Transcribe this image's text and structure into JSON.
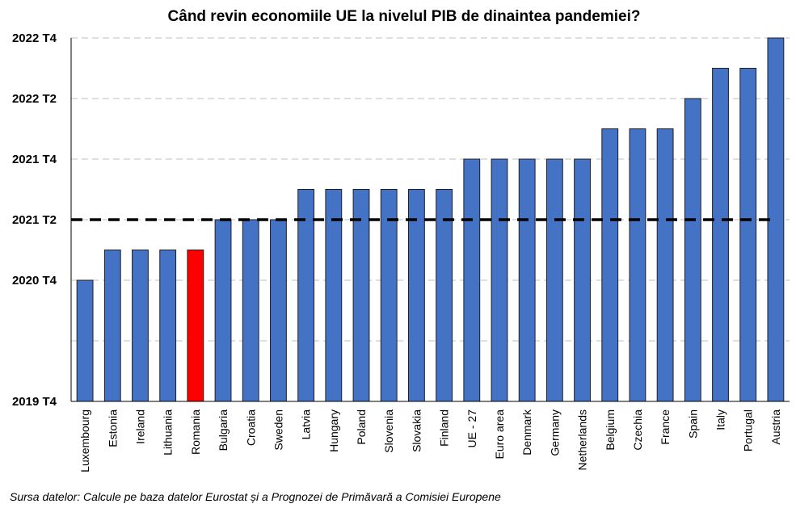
{
  "chart_data": {
    "type": "bar",
    "title": "Când revin economiile UE la nivelul PIB de dinaintea pandemiei?",
    "source": "Sursa datelor: Calcule pe baza datelor Eurostat și a Prognozei de Primăvară a Comisiei Europene",
    "y_tick_labels": [
      "2019 T4",
      "2020 T4",
      "2021 T2",
      "2021 T4",
      "2022 T2",
      "2022 T4"
    ],
    "y_tick_values": [
      0,
      4,
      6,
      8,
      10,
      12
    ],
    "ylim": [
      0,
      12
    ],
    "y_unit": "quarters after 2019 T4",
    "reference_line": {
      "value": 6,
      "label": "2021 T2",
      "style": "dashed"
    },
    "grid": "horizontal dashed",
    "categories": [
      "Luxembourg",
      "Estonia",
      "Ireland",
      "Lithuania",
      "Romania",
      "Bulgaria",
      "Croatia",
      "Sweden",
      "Latvia",
      "Hungary",
      "Poland",
      "Slovenia",
      "Slovakia",
      "Finland",
      "UE - 27",
      "Euro area",
      "Denmark",
      "Germany",
      "Netherlands",
      "Belgium",
      "Czechia",
      "France",
      "Spain",
      "Italy",
      "Portugal",
      "Austria"
    ],
    "values": [
      4,
      5,
      5,
      5,
      5,
      6,
      6,
      6,
      7,
      7,
      7,
      7,
      7,
      7,
      8,
      8,
      8,
      8,
      8,
      9,
      9,
      9,
      10,
      11,
      11,
      12
    ],
    "value_labels": [
      "2020 T4",
      "2021 T1",
      "2021 T1",
      "2021 T1",
      "2021 T1",
      "2021 T2",
      "2021 T2",
      "2021 T2",
      "2021 T3",
      "2021 T3",
      "2021 T3",
      "2021 T3",
      "2021 T3",
      "2021 T3",
      "2021 T4",
      "2021 T4",
      "2021 T4",
      "2021 T4",
      "2021 T4",
      "2022 T1",
      "2022 T1",
      "2022 T1",
      "2022 T2",
      "2022 T3",
      "2022 T3",
      "2022 T4"
    ],
    "colors": {
      "default": "#4472C4",
      "highlight": "#FF0000",
      "bar_edge": "#1F1F1F",
      "grid": "#BFBFBF",
      "reference": "#000000"
    },
    "highlight_category": "Romania"
  }
}
